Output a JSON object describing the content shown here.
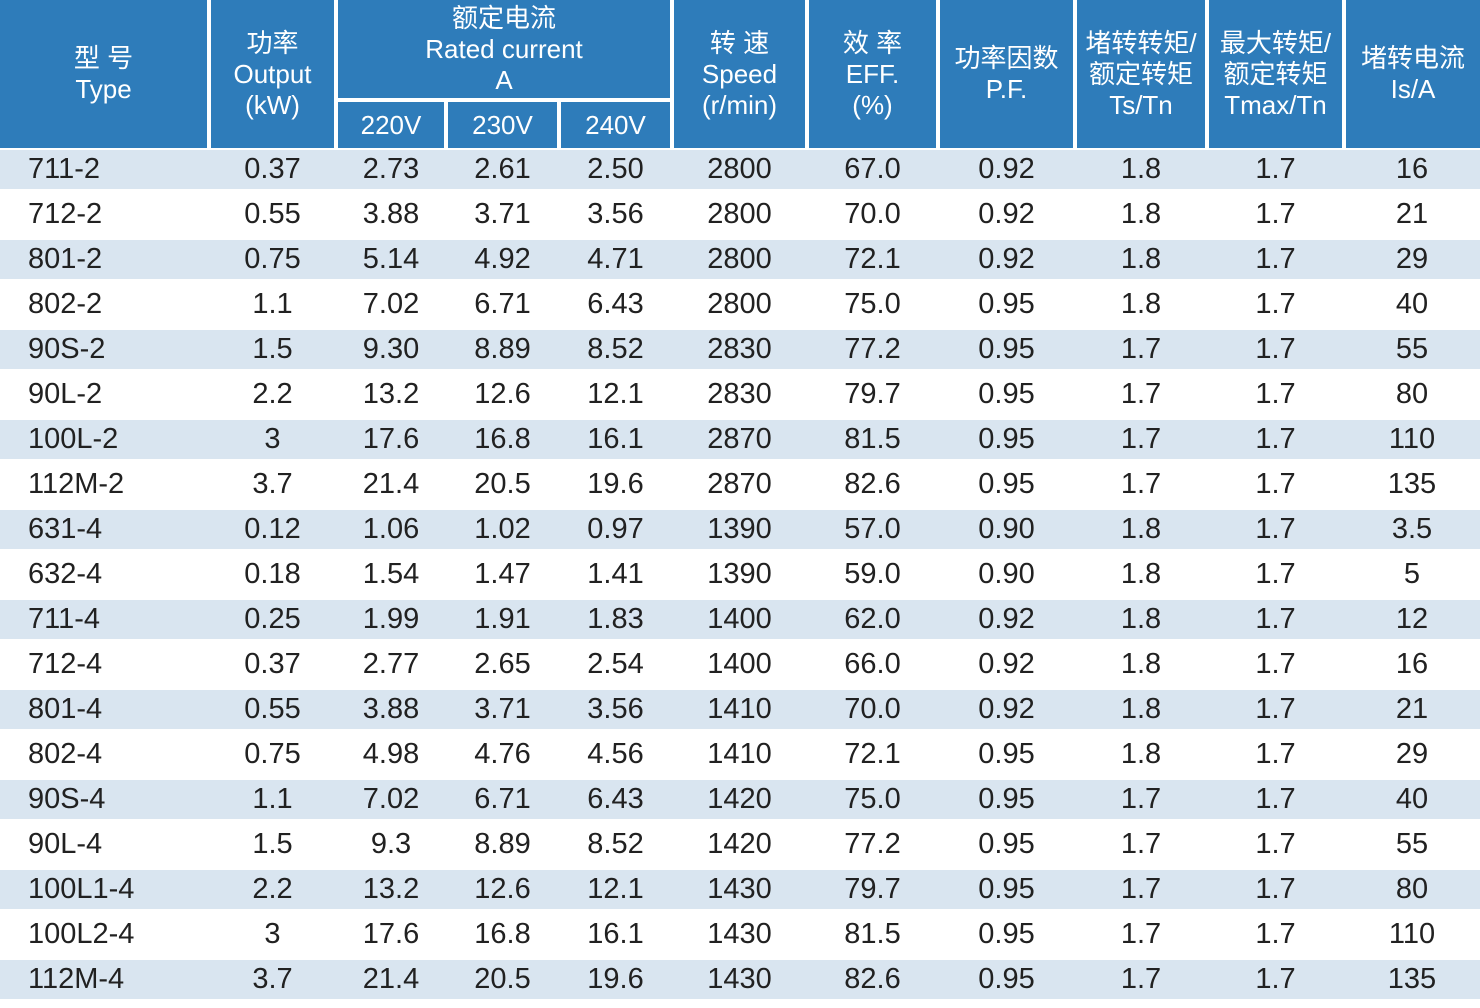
{
  "colors": {
    "header_bg": "#2e7cba",
    "header_text": "#ffffff",
    "stripe_bg": "#d9e5f0",
    "row_bg": "#ffffff",
    "data_text": "#212121",
    "separator": "#ffffff"
  },
  "table": {
    "header": {
      "type": {
        "line1": "型 号",
        "line2": "Type",
        "line3": ""
      },
      "output": {
        "line1": "功率",
        "line2": "Output",
        "line3": "(kW)"
      },
      "rated_current": {
        "line1": "额定电流",
        "line2": "Rated current",
        "line3": "A"
      },
      "voltages": [
        "220V",
        "230V",
        "240V"
      ],
      "speed": {
        "line1": "转 速",
        "line2": "Speed",
        "line3": "(r/min)"
      },
      "efficiency": {
        "line1": "效 率",
        "line2": "EFF.",
        "line3": "(%)"
      },
      "power_factor": {
        "line1": "功率因数",
        "line2": "P.F.",
        "line3": ""
      },
      "locked_rotor_torque": {
        "line1": "堵转转矩/",
        "line2": "额定转矩",
        "line3": "Ts/Tn"
      },
      "max_torque": {
        "line1": "最大转矩/",
        "line2": "额定转矩",
        "line3": "Tmax/Tn"
      },
      "locked_rotor_current": {
        "line1": "堵转电流",
        "line2": "Is/A",
        "line3": ""
      }
    },
    "rows": [
      [
        "711-2",
        "0.37",
        "2.73",
        "2.61",
        "2.50",
        "2800",
        "67.0",
        "0.92",
        "1.8",
        "1.7",
        "16"
      ],
      [
        "712-2",
        "0.55",
        "3.88",
        "3.71",
        "3.56",
        "2800",
        "70.0",
        "0.92",
        "1.8",
        "1.7",
        "21"
      ],
      [
        "801-2",
        "0.75",
        "5.14",
        "4.92",
        "4.71",
        "2800",
        "72.1",
        "0.92",
        "1.8",
        "1.7",
        "29"
      ],
      [
        "802-2",
        "1.1",
        "7.02",
        "6.71",
        "6.43",
        "2800",
        "75.0",
        "0.95",
        "1.8",
        "1.7",
        "40"
      ],
      [
        "90S-2",
        "1.5",
        "9.30",
        "8.89",
        "8.52",
        "2830",
        "77.2",
        "0.95",
        "1.7",
        "1.7",
        "55"
      ],
      [
        "90L-2",
        "2.2",
        "13.2",
        "12.6",
        "12.1",
        "2830",
        "79.7",
        "0.95",
        "1.7",
        "1.7",
        "80"
      ],
      [
        "100L-2",
        "3",
        "17.6",
        "16.8",
        "16.1",
        "2870",
        "81.5",
        "0.95",
        "1.7",
        "1.7",
        "110"
      ],
      [
        "112M-2",
        "3.7",
        "21.4",
        "20.5",
        "19.6",
        "2870",
        "82.6",
        "0.95",
        "1.7",
        "1.7",
        "135"
      ],
      [
        "631-4",
        "0.12",
        "1.06",
        "1.02",
        "0.97",
        "1390",
        "57.0",
        "0.90",
        "1.8",
        "1.7",
        "3.5"
      ],
      [
        "632-4",
        "0.18",
        "1.54",
        "1.47",
        "1.41",
        "1390",
        "59.0",
        "0.90",
        "1.8",
        "1.7",
        "5"
      ],
      [
        "711-4",
        "0.25",
        "1.99",
        "1.91",
        "1.83",
        "1400",
        "62.0",
        "0.92",
        "1.8",
        "1.7",
        "12"
      ],
      [
        "712-4",
        "0.37",
        "2.77",
        "2.65",
        "2.54",
        "1400",
        "66.0",
        "0.92",
        "1.8",
        "1.7",
        "16"
      ],
      [
        "801-4",
        "0.55",
        "3.88",
        "3.71",
        "3.56",
        "1410",
        "70.0",
        "0.92",
        "1.8",
        "1.7",
        "21"
      ],
      [
        "802-4",
        "0.75",
        "4.98",
        "4.76",
        "4.56",
        "1410",
        "72.1",
        "0.95",
        "1.8",
        "1.7",
        "29"
      ],
      [
        "90S-4",
        "1.1",
        "7.02",
        "6.71",
        "6.43",
        "1420",
        "75.0",
        "0.95",
        "1.7",
        "1.7",
        "40"
      ],
      [
        "90L-4",
        "1.5",
        "9.3",
        "8.89",
        "8.52",
        "1420",
        "77.2",
        "0.95",
        "1.7",
        "1.7",
        "55"
      ],
      [
        "100L1-4",
        "2.2",
        "13.2",
        "12.6",
        "12.1",
        "1430",
        "79.7",
        "0.95",
        "1.7",
        "1.7",
        "80"
      ],
      [
        "100L2-4",
        "3",
        "17.6",
        "16.8",
        "16.1",
        "1430",
        "81.5",
        "0.95",
        "1.7",
        "1.7",
        "110"
      ],
      [
        "112M-4",
        "3.7",
        "21.4",
        "20.5",
        "19.6",
        "1430",
        "82.6",
        "0.95",
        "1.7",
        "1.7",
        "135"
      ]
    ]
  }
}
